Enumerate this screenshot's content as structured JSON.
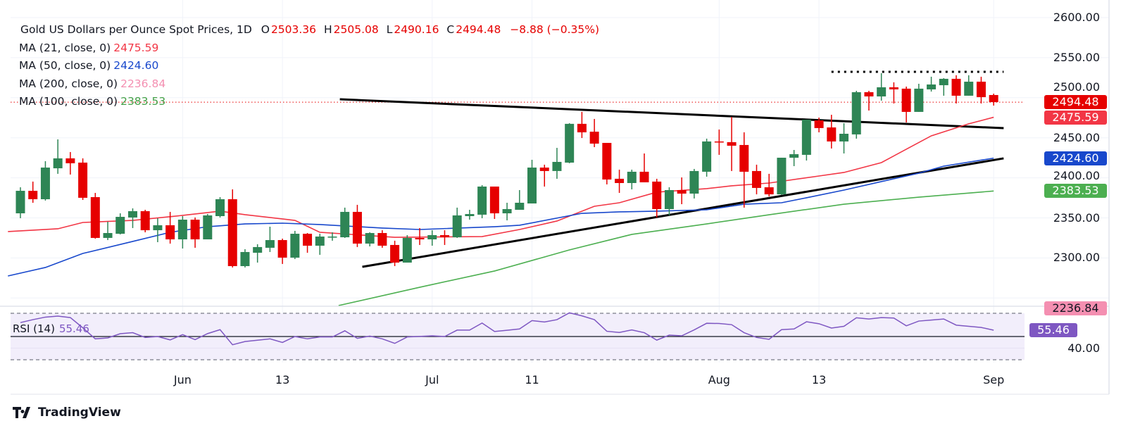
{
  "header": {
    "symbol": "Gold US Dollars per Ounce Spot Prices, 1D",
    "o_label": "O",
    "open": "2503.36",
    "h_label": "H",
    "high": "2505.08",
    "l_label": "L",
    "low": "2490.16",
    "c_label": "C",
    "close": "2494.48",
    "change": "−8.88 (−0.35%)"
  },
  "indicators": [
    {
      "label": "MA (21, close, 0)",
      "value": "2475.59",
      "color": "#f23645"
    },
    {
      "label": "MA (50, close, 0)",
      "value": "2424.60",
      "color": "#1848cc"
    },
    {
      "label": "MA (200, close, 0)",
      "value": "2236.84",
      "color": "#f48fb1"
    },
    {
      "label": "MA (100, close, 0)",
      "value": "2383.53",
      "color": "#43a047"
    }
  ],
  "rsi": {
    "label": "RSI (14)",
    "value": "55.46",
    "color": "#7e57c2",
    "axis_label": "40.00"
  },
  "price_axis": {
    "ticks": [
      "2600.00",
      "2550.00",
      "2500.00",
      "2450.00",
      "2400.00",
      "2350.00",
      "2300.00"
    ],
    "badges": [
      {
        "value": "2494.48",
        "color": "#e60000"
      },
      {
        "value": "2475.59",
        "color": "#f23645"
      },
      {
        "value": "2424.60",
        "color": "#1848cc"
      },
      {
        "value": "2383.53",
        "color": "#4caf50"
      },
      {
        "value": "2236.84",
        "color": "#f48fb1"
      }
    ]
  },
  "time_axis": {
    "ticks": [
      {
        "label": "Jun",
        "bar": 14
      },
      {
        "label": "13",
        "bar": 22
      },
      {
        "label": "Jul",
        "bar": 34
      },
      {
        "label": "11",
        "bar": 42
      },
      {
        "label": "Aug",
        "bar": 57
      },
      {
        "label": "13",
        "bar": 65
      },
      {
        "label": "Sep",
        "bar": 79
      }
    ]
  },
  "branding": {
    "name": "TradingView"
  },
  "chart_data": {
    "type": "candlestick",
    "title": "Gold US Dollars per Ounce Spot Prices, 1D",
    "ylim": [
      2230,
      2610
    ],
    "grid": true,
    "colors": {
      "up": "#2e8555",
      "down": "#e60000"
    },
    "candles_ohlc": [
      [
        2355.7,
        2388.2,
        2349.6,
        2383.8
      ],
      [
        2383.8,
        2395.3,
        2368.9,
        2373.3
      ],
      [
        2373.3,
        2420.8,
        2371.6,
        2412.8
      ],
      [
        2411.9,
        2448.0,
        2405.0,
        2424.3
      ],
      [
        2424.3,
        2432.2,
        2404.1,
        2418.2
      ],
      [
        2419.0,
        2424.3,
        2372.4,
        2375.1
      ],
      [
        2375.9,
        2381.2,
        2324.1,
        2325.0
      ],
      [
        2325.0,
        2345.2,
        2322.3,
        2331.1
      ],
      [
        2330.2,
        2355.7,
        2329.4,
        2351.3
      ],
      [
        2350.5,
        2361.9,
        2337.3,
        2358.4
      ],
      [
        2358.4,
        2360.1,
        2332.0,
        2334.6
      ],
      [
        2334.6,
        2349.6,
        2319.7,
        2340.8
      ],
      [
        2340.8,
        2357.5,
        2317.9,
        2323.2
      ],
      [
        2323.2,
        2352.2,
        2311.8,
        2347.8
      ],
      [
        2347.8,
        2350.5,
        2312.7,
        2323.2
      ],
      [
        2323.2,
        2354.8,
        2323.2,
        2353.1
      ],
      [
        2352.2,
        2375.9,
        2350.5,
        2373.3
      ],
      [
        2373.3,
        2385.6,
        2288.1,
        2289.8
      ],
      [
        2289.8,
        2310.9,
        2288.1,
        2307.4
      ],
      [
        2306.5,
        2317.1,
        2294.2,
        2313.6
      ],
      [
        2312.7,
        2339.0,
        2307.4,
        2322.3
      ],
      [
        2322.3,
        2324.1,
        2292.5,
        2300.4
      ],
      [
        2300.4,
        2333.8,
        2298.6,
        2330.2
      ],
      [
        2330.2,
        2331.1,
        2306.5,
        2315.3
      ],
      [
        2315.3,
        2330.2,
        2303.9,
        2326.7
      ],
      [
        2325.8,
        2332.0,
        2321.5,
        2326.7
      ],
      [
        2325.8,
        2362.8,
        2325.0,
        2357.5
      ],
      [
        2357.5,
        2366.3,
        2313.6,
        2317.9
      ],
      [
        2317.9,
        2332.0,
        2314.4,
        2331.1
      ],
      [
        2331.1,
        2334.6,
        2312.7,
        2315.3
      ],
      [
        2316.2,
        2321.5,
        2289.8,
        2294.2
      ],
      [
        2294.2,
        2328.5,
        2294.2,
        2325.0
      ],
      [
        2325.0,
        2337.3,
        2316.2,
        2323.2
      ],
      [
        2323.2,
        2334.6,
        2315.3,
        2328.5
      ],
      [
        2328.5,
        2334.6,
        2316.2,
        2325.8
      ],
      [
        2325.8,
        2362.8,
        2325.0,
        2353.1
      ],
      [
        2352.2,
        2360.1,
        2347.8,
        2354.8
      ],
      [
        2354.0,
        2390.9,
        2349.6,
        2389.1
      ],
      [
        2389.1,
        2389.1,
        2348.7,
        2355.7
      ],
      [
        2355.7,
        2368.9,
        2346.9,
        2361.0
      ],
      [
        2360.1,
        2384.7,
        2360.1,
        2368.9
      ],
      [
        2368.0,
        2422.5,
        2368.0,
        2412.8
      ],
      [
        2412.8,
        2416.4,
        2389.1,
        2408.5
      ],
      [
        2408.5,
        2437.4,
        2398.8,
        2419.9
      ],
      [
        2419.0,
        2468.2,
        2418.2,
        2467.4
      ],
      [
        2467.4,
        2482.3,
        2449.7,
        2456.8
      ],
      [
        2457.6,
        2473.5,
        2438.3,
        2442.7
      ],
      [
        2443.6,
        2443.6,
        2391.8,
        2397.9
      ],
      [
        2398.8,
        2410.2,
        2381.2,
        2393.5
      ],
      [
        2393.5,
        2410.2,
        2385.6,
        2407.6
      ],
      [
        2407.6,
        2430.4,
        2394.4,
        2394.4
      ],
      [
        2395.3,
        2398.8,
        2350.5,
        2361.0
      ],
      [
        2361.0,
        2388.2,
        2353.1,
        2384.7
      ],
      [
        2384.7,
        2400.5,
        2367.1,
        2380.3
      ],
      [
        2380.3,
        2411.1,
        2374.2,
        2408.5
      ],
      [
        2407.6,
        2448.9,
        2401.4,
        2445.4
      ],
      [
        2445.4,
        2460.3,
        2428.7,
        2444.5
      ],
      [
        2444.5,
        2476.1,
        2408.5,
        2440.1
      ],
      [
        2441.0,
        2456.8,
        2362.8,
        2407.6
      ],
      [
        2408.5,
        2416.4,
        2379.4,
        2387.4
      ],
      [
        2388.2,
        2405.0,
        2376.8,
        2379.4
      ],
      [
        2379.4,
        2425.1,
        2378.6,
        2425.1
      ],
      [
        2425.1,
        2434.8,
        2414.6,
        2429.5
      ],
      [
        2428.7,
        2472.6,
        2421.6,
        2472.6
      ],
      [
        2471.7,
        2475.2,
        2456.8,
        2462.1
      ],
      [
        2462.9,
        2478.7,
        2436.6,
        2445.4
      ],
      [
        2445.4,
        2468.2,
        2430.4,
        2455.0
      ],
      [
        2454.2,
        2508.6,
        2448.9,
        2506.9
      ],
      [
        2506.9,
        2508.6,
        2484.0,
        2501.6
      ],
      [
        2501.6,
        2530.6,
        2496.3,
        2513.0
      ],
      [
        2513.0,
        2519.2,
        2492.8,
        2510.4
      ],
      [
        2511.3,
        2513.9,
        2469.1,
        2482.3
      ],
      [
        2482.3,
        2517.4,
        2482.3,
        2511.3
      ],
      [
        2510.4,
        2526.2,
        2507.7,
        2516.5
      ],
      [
        2515.6,
        2524.4,
        2502.5,
        2523.6
      ],
      [
        2523.6,
        2528.0,
        2492.8,
        2502.5
      ],
      [
        2502.5,
        2528.0,
        2502.5,
        2520.0
      ],
      [
        2520.0,
        2526.2,
        2492.8,
        2500.7
      ],
      [
        2503.36,
        2505.08,
        2490.16,
        2494.48
      ]
    ],
    "moving_averages": [
      {
        "name": "MA (21, close, 0)",
        "color": "#f23645",
        "points": [
          [
            0,
            2332.9
          ],
          [
            4,
            2336.4
          ],
          [
            6,
            2344.3
          ],
          [
            10,
            2346.9
          ],
          [
            14,
            2353.1
          ],
          [
            17,
            2358.4
          ],
          [
            19,
            2354.0
          ],
          [
            23,
            2346.9
          ],
          [
            25,
            2332.0
          ],
          [
            31,
            2325.8
          ],
          [
            38,
            2326.7
          ],
          [
            41,
            2335.5
          ],
          [
            44,
            2346.1
          ],
          [
            47,
            2364.5
          ],
          [
            49,
            2368.9
          ],
          [
            52,
            2382.1
          ],
          [
            56,
            2386.5
          ],
          [
            58,
            2390.0
          ],
          [
            61,
            2393.5
          ],
          [
            65,
            2402.3
          ],
          [
            67,
            2406.7
          ],
          [
            70,
            2419.0
          ],
          [
            72,
            2435.7
          ],
          [
            74,
            2452.4
          ],
          [
            77,
            2467.4
          ],
          [
            79,
            2475.59
          ]
        ]
      },
      {
        "name": "MA (50, close, 0)",
        "color": "#1848cc",
        "points": [
          [
            0,
            2277.5
          ],
          [
            3,
            2288.1
          ],
          [
            6,
            2305.6
          ],
          [
            10,
            2320.6
          ],
          [
            13,
            2332.0
          ],
          [
            16,
            2339.0
          ],
          [
            19,
            2342.5
          ],
          [
            22,
            2343.4
          ],
          [
            25,
            2341.7
          ],
          [
            30,
            2337.3
          ],
          [
            33,
            2335.5
          ],
          [
            39,
            2339.0
          ],
          [
            41,
            2340.8
          ],
          [
            46,
            2355.7
          ],
          [
            49,
            2357.5
          ],
          [
            52,
            2358.4
          ],
          [
            56,
            2360.1
          ],
          [
            59,
            2367.1
          ],
          [
            62,
            2368.9
          ],
          [
            64,
            2375.1
          ],
          [
            67,
            2384.7
          ],
          [
            70,
            2395.3
          ],
          [
            73,
            2405.8
          ],
          [
            75,
            2414.6
          ],
          [
            79,
            2424.6
          ]
        ]
      },
      {
        "name": "MA (100, close, 0)",
        "color": "#4caf50",
        "points": [
          [
            26.5,
            2240.6
          ],
          [
            33,
            2263.4
          ],
          [
            39,
            2283.7
          ],
          [
            45,
            2310.0
          ],
          [
            50,
            2329.4
          ],
          [
            56,
            2342.5
          ],
          [
            61,
            2353.9
          ],
          [
            67,
            2367.1
          ],
          [
            73,
            2375.9
          ],
          [
            79,
            2383.53
          ]
        ]
      }
    ],
    "trend_lines": [
      {
        "from": [
          26.6,
          2498.1
        ],
        "to": [
          79.8,
          2462.0
        ],
        "style": "solid"
      },
      {
        "from": [
          28.4,
          2288.9
        ],
        "to": [
          79.8,
          2424.3
        ],
        "style": "solid"
      },
      {
        "from": [
          66,
          2532.3
        ],
        "to": [
          79.8,
          2532.3
        ],
        "style": "dotted"
      }
    ],
    "last_price_line": 2494.48,
    "rsi_series": [
      62,
      64.5,
      66.7,
      67.6,
      66.3,
      57.5,
      48.0,
      48.8,
      52.4,
      53.3,
      49.2,
      50.0,
      47.1,
      51.6,
      47.3,
      52.5,
      55.9,
      42.9,
      45.7,
      46.8,
      48.0,
      44.9,
      50.0,
      48.0,
      49.6,
      49.6,
      54.9,
      48.4,
      50.4,
      48.0,
      44.1,
      49.6,
      50.1,
      50.6,
      50.0,
      55.5,
      55.5,
      61.6,
      54.3,
      55.4,
      56.5,
      63.7,
      62.5,
      64.5,
      70.4,
      67.8,
      64.5,
      54.5,
      53.5,
      55.7,
      53.3,
      46.9,
      51.2,
      50.6,
      55.7,
      61.4,
      61.2,
      60.2,
      53.3,
      49.2,
      47.6,
      55.9,
      56.5,
      62.7,
      61.0,
      57.3,
      58.8,
      66.1,
      65.1,
      66.3,
      65.9,
      59.2,
      63.3,
      64.2,
      65.1,
      59.8,
      58.8,
      57.8,
      55.46
    ],
    "rsi_levels": {
      "upper": 70,
      "middle": 50,
      "lower": 30
    }
  }
}
